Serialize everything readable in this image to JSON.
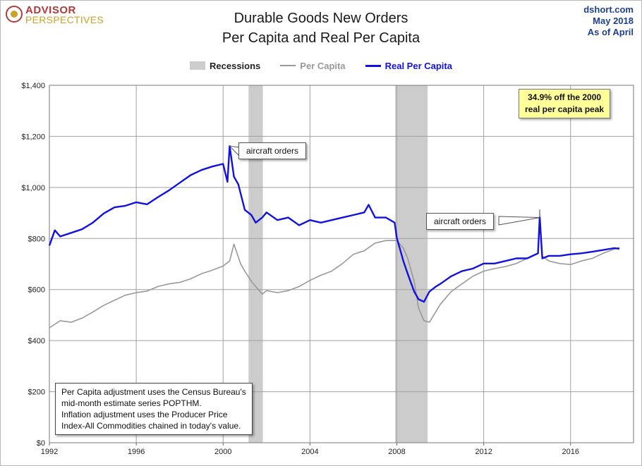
{
  "logo": {
    "top": "ADVISOR",
    "bottom": "PERSPECTIVES"
  },
  "source": {
    "site": "dshort.com",
    "date": "May 2018",
    "asof": "As  of April"
  },
  "chart_data": {
    "type": "line",
    "title": "Durable Goods New Orders",
    "subtitle": "Per Capita and Real Per Capita",
    "legend": {
      "placement": "top-center",
      "items": [
        "Recessions",
        "Per Capita",
        "Real Per Capita"
      ]
    },
    "colors": {
      "recession": "#cccccc",
      "per_capita": "#999999",
      "real_per_capita": "#1212e0"
    },
    "xlim": [
      1992,
      2018.9
    ],
    "ylim": [
      0,
      1400
    ],
    "x_ticks": [
      "1992",
      "1996",
      "2000",
      "2004",
      "2008",
      "2012",
      "2016"
    ],
    "y_ticks": [
      "$0",
      "$200",
      "$400",
      "$600",
      "$800",
      "$1,000",
      "$1,200",
      "$1,400"
    ],
    "grid": true,
    "recessions": [
      [
        2001.17,
        2001.83
      ],
      [
        2007.92,
        2009.42
      ]
    ],
    "series": [
      {
        "name": "Per Capita",
        "x": [
          1992,
          1992.5,
          1993,
          1993.5,
          1994,
          1994.5,
          1995,
          1995.5,
          1996,
          1996.5,
          1997,
          1997.5,
          1998,
          1998.5,
          1999,
          1999.5,
          2000,
          2000.3,
          2000.5,
          2000.8,
          2001,
          2001.3,
          2001.5,
          2001.8,
          2002,
          2002.5,
          2003,
          2003.5,
          2004,
          2004.5,
          2005,
          2005.5,
          2006,
          2006.5,
          2007,
          2007.5,
          2008,
          2008.3,
          2008.5,
          2008.8,
          2009,
          2009.25,
          2009.5,
          2010,
          2010.5,
          2011,
          2011.5,
          2012,
          2012.5,
          2013,
          2013.5,
          2014,
          2014.5,
          2014.58,
          2014.7,
          2015,
          2015.5,
          2016,
          2016.5,
          2017,
          2017.5,
          2018,
          2018.25
        ],
        "values": [
          450,
          478,
          472,
          488,
          512,
          538,
          558,
          578,
          588,
          594,
          612,
          622,
          628,
          642,
          662,
          676,
          692,
          712,
          778,
          702,
          672,
          632,
          612,
          582,
          596,
          588,
          596,
          612,
          636,
          656,
          672,
          702,
          738,
          752,
          782,
          792,
          792,
          762,
          722,
          632,
          528,
          478,
          472,
          542,
          592,
          622,
          652,
          672,
          682,
          690,
          702,
          722,
          742,
          912,
          730,
          712,
          702,
          698,
          712,
          722,
          742,
          758,
          765
        ]
      },
      {
        "name": "Real Per Capita",
        "x": [
          1992,
          1992.25,
          1992.5,
          1993,
          1993.5,
          1994,
          1994.5,
          1995,
          1995.5,
          1996,
          1996.5,
          1997,
          1997.5,
          1998,
          1998.5,
          1999,
          1999.5,
          2000,
          2000.2,
          2000.3,
          2000.5,
          2000.7,
          2001,
          2001.3,
          2001.5,
          2001.8,
          2002,
          2002.5,
          2003,
          2003.5,
          2004,
          2004.5,
          2005,
          2005.5,
          2006,
          2006.5,
          2006.7,
          2007,
          2007.5,
          2007.9,
          2008,
          2008.3,
          2008.5,
          2008.8,
          2009,
          2009.25,
          2009.5,
          2009.8,
          2010,
          2010.5,
          2011,
          2011.5,
          2012,
          2012.5,
          2013,
          2013.5,
          2014,
          2014.5,
          2014.58,
          2014.7,
          2015,
          2015.5,
          2016,
          2016.5,
          2017,
          2017.5,
          2018,
          2018.25
        ],
        "values": [
          772,
          832,
          808,
          822,
          836,
          862,
          898,
          922,
          928,
          942,
          934,
          962,
          988,
          1018,
          1048,
          1068,
          1082,
          1092,
          1022,
          1162,
          1042,
          1012,
          912,
          892,
          862,
          882,
          902,
          872,
          882,
          852,
          872,
          862,
          872,
          882,
          892,
          902,
          932,
          882,
          882,
          862,
          802,
          712,
          662,
          592,
          562,
          552,
          592,
          612,
          622,
          652,
          672,
          682,
          702,
          702,
          712,
          722,
          722,
          742,
          882,
          722,
          732,
          732,
          738,
          742,
          748,
          755,
          762,
          760
        ]
      }
    ],
    "annotations": [
      {
        "text": "aircraft orders",
        "x": 2000.3,
        "y": 1162
      },
      {
        "text": "aircraft orders",
        "x": 2014.58,
        "y": 882
      },
      {
        "text": "34.9% off the 2000 real per capita peak"
      },
      {
        "text": "Per Capita adjustment uses the Census Bureau's mid-month estimate series POPTHM. Inflation adjustment uses the Producer Price Index-All Commodities chained in today's value."
      }
    ]
  },
  "callouts": {
    "aircraft1": "aircraft orders",
    "aircraft2": "aircraft orders",
    "peak_line1": "34.9% off the 2000",
    "peak_line2": "real per capita peak",
    "note_line1": "Per Capita adjustment uses the Census Bureau's",
    "note_line2": "mid-month estimate series POPTHM.",
    "note_line3": "Inflation adjustment uses the Producer Price",
    "note_line4": "Index-All Commodities chained in today's value."
  }
}
